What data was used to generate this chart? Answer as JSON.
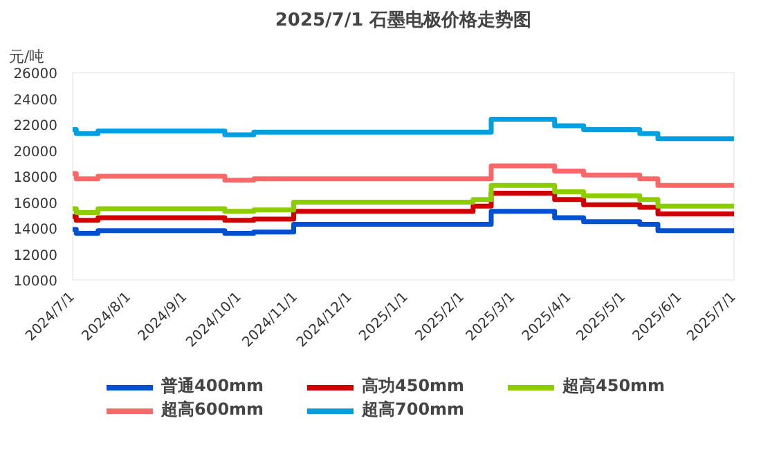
{
  "chart_data": {
    "type": "step",
    "title": "2025/7/1 石墨电极价格走势图",
    "ylabel": "元/吨",
    "ylim": [
      10000,
      26000
    ],
    "yticks": [
      10000,
      12000,
      14000,
      16000,
      18000,
      20000,
      22000,
      24000,
      26000
    ],
    "xlim": [
      "2024-07-01",
      "2025-07-01"
    ],
    "xticks": [
      {
        "value": "2024-07-01",
        "label": "2024/7/1"
      },
      {
        "value": "2024-08-01",
        "label": "2024/8/1"
      },
      {
        "value": "2024-09-01",
        "label": "2024/9/1"
      },
      {
        "value": "2024-10-01",
        "label": "2024/10/1"
      },
      {
        "value": "2024-11-01",
        "label": "2024/11/1"
      },
      {
        "value": "2024-12-01",
        "label": "2024/12/1"
      },
      {
        "value": "2025-01-01",
        "label": "2025/1/1"
      },
      {
        "value": "2025-02-01",
        "label": "2025/2/1"
      },
      {
        "value": "2025-03-01",
        "label": "2025/3/1"
      },
      {
        "value": "2025-04-01",
        "label": "2025/4/1"
      },
      {
        "value": "2025-05-01",
        "label": "2025/5/1"
      },
      {
        "value": "2025-06-01",
        "label": "2025/6/1"
      },
      {
        "value": "2025-07-01",
        "label": "2025/7/1"
      }
    ],
    "grid": false,
    "legend": "bottom",
    "marker": "none",
    "line_style": "solid",
    "series": [
      {
        "name": "普通400mm",
        "color": "#0050d0",
        "x": [
          "2024-07-01",
          "2024-07-03",
          "2024-07-15",
          "2024-09-23",
          "2024-10-09",
          "2024-10-31",
          "2025-02-17",
          "2025-03-24",
          "2025-04-09",
          "2025-05-10",
          "2025-05-20",
          "2025-07-01"
        ],
        "values": [
          13900,
          13600,
          13800,
          13600,
          13700,
          14300,
          15300,
          14800,
          14500,
          14300,
          13800,
          13800
        ]
      },
      {
        "name": "高功450mm",
        "color": "#d00000",
        "x": [
          "2024-07-01",
          "2024-07-03",
          "2024-07-15",
          "2024-09-23",
          "2024-10-09",
          "2024-10-31",
          "2025-02-07",
          "2025-02-17",
          "2025-03-24",
          "2025-04-09",
          "2025-05-10",
          "2025-05-20",
          "2025-07-01"
        ],
        "values": [
          14900,
          14600,
          14800,
          14600,
          14700,
          15300,
          15700,
          16700,
          16200,
          15800,
          15600,
          15100,
          15100
        ]
      },
      {
        "name": "超高450mm",
        "color": "#8ccc00",
        "x": [
          "2024-07-01",
          "2024-07-03",
          "2024-07-15",
          "2024-09-23",
          "2024-10-09",
          "2024-10-31",
          "2025-02-07",
          "2025-02-17",
          "2025-03-24",
          "2025-04-09",
          "2025-05-10",
          "2025-05-20",
          "2025-07-01"
        ],
        "values": [
          15500,
          15200,
          15500,
          15300,
          15400,
          16000,
          16200,
          17300,
          16800,
          16500,
          16200,
          15700,
          15700
        ]
      },
      {
        "name": "超高600mm",
        "color": "#f86868",
        "x": [
          "2024-07-01",
          "2024-07-03",
          "2024-07-15",
          "2024-09-23",
          "2024-10-09",
          "2025-02-17",
          "2025-03-24",
          "2025-04-09",
          "2025-05-10",
          "2025-05-20",
          "2025-07-01"
        ],
        "values": [
          18200,
          17800,
          18000,
          17700,
          17800,
          18800,
          18400,
          18100,
          17800,
          17300,
          17300
        ]
      },
      {
        "name": "超高700mm",
        "color": "#00a0e0",
        "x": [
          "2024-07-01",
          "2024-07-03",
          "2024-07-15",
          "2024-09-23",
          "2024-10-09",
          "2025-02-17",
          "2025-03-24",
          "2025-04-09",
          "2025-05-10",
          "2025-05-20",
          "2025-07-01"
        ],
        "values": [
          21600,
          21300,
          21500,
          21200,
          21400,
          22400,
          21900,
          21600,
          21300,
          20900,
          20900
        ]
      }
    ]
  }
}
